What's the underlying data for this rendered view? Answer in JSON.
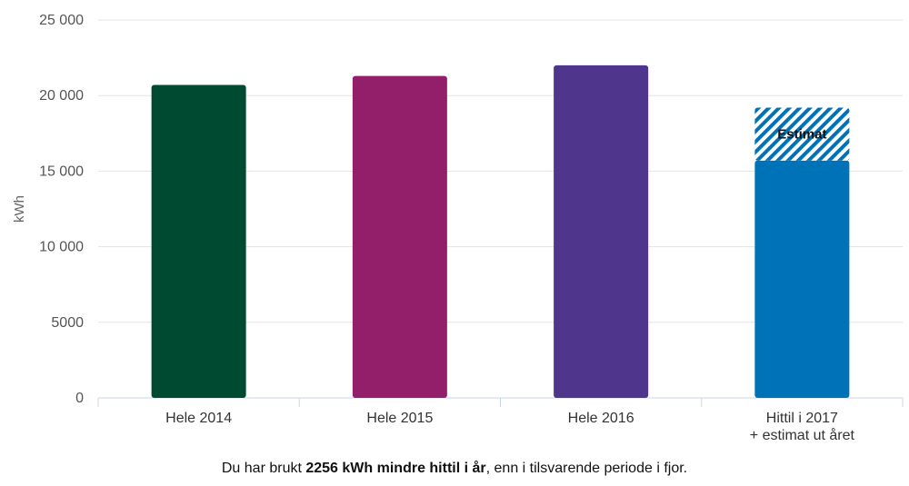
{
  "chart_data": {
    "type": "bar",
    "title": "",
    "xlabel": "",
    "ylabel": "kWh",
    "ylim": [
      0,
      25000
    ],
    "yticks": [
      0,
      5000,
      10000,
      15000,
      20000,
      25000
    ],
    "ytick_labels": [
      "0",
      "5000",
      "10 000",
      "15 000",
      "20 000",
      "25 000"
    ],
    "grid": true,
    "categories": [
      [
        "Hele 2014"
      ],
      [
        "Hele 2015"
      ],
      [
        "Hele 2016"
      ],
      [
        "Hittil i 2017",
        "+ estimat ut året"
      ]
    ],
    "values": [
      20700,
      21300,
      22000,
      15700
    ],
    "estimate": {
      "category_index": 3,
      "from": 15700,
      "to": 19200,
      "label": "Estimat"
    },
    "colors": [
      "#004a32",
      "#931f6a",
      "#4f368c",
      "#0073b8"
    ]
  },
  "summary": {
    "prefix": "Du har brukt ",
    "highlight": "2256 kWh mindre hittil i år",
    "suffix": ", enn i tilsvarende periode i fjor."
  }
}
